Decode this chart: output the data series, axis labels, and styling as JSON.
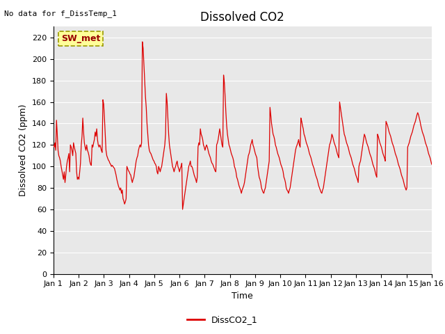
{
  "title": "Dissolved CO2",
  "xlabel": "Time",
  "ylabel": "Dissolved CO2 (ppm)",
  "top_left_text": "No data for f_DissTemp_1",
  "legend_label": "DissCO2_1",
  "box_label": "SW_met",
  "line_color": "#dd0000",
  "ylim": [
    0,
    230
  ],
  "yticks": [
    0,
    20,
    40,
    60,
    80,
    100,
    120,
    140,
    160,
    180,
    200,
    220
  ],
  "xtick_labels": [
    "Jan 1",
    "Jan 2",
    "Jan 3",
    "Jan 4",
    "Jan 5",
    "Jan 6",
    "Jan 7",
    "Jan 8",
    "Jan 9",
    "Jan 10",
    "Jan 11",
    "Jan 12",
    "Jan 13",
    "Jan 14",
    "Jan 15",
    "Jan 16"
  ],
  "data_y": [
    120,
    118,
    122,
    115,
    143,
    130,
    115,
    110,
    108,
    105,
    100,
    96,
    92,
    88,
    95,
    85,
    92,
    100,
    105,
    108,
    112,
    95,
    120,
    118,
    115,
    110,
    122,
    118,
    115,
    112,
    95,
    88,
    90,
    88,
    95,
    103,
    120,
    128,
    145,
    132,
    122,
    118,
    115,
    120,
    115,
    113,
    110,
    105,
    102,
    101,
    120,
    118,
    122,
    125,
    132,
    128,
    135,
    125,
    120,
    118,
    120,
    118,
    115,
    113,
    162,
    158,
    145,
    130,
    115,
    110,
    108,
    106,
    105,
    103,
    102,
    100,
    101,
    100,
    99,
    98,
    95,
    92,
    88,
    85,
    82,
    80,
    78,
    80,
    75,
    78,
    70,
    68,
    65,
    67,
    70,
    100,
    98,
    96,
    95,
    93,
    92,
    88,
    85,
    88,
    90,
    95,
    100,
    105,
    108,
    110,
    115,
    118,
    120,
    118,
    122,
    216,
    210,
    195,
    180,
    165,
    155,
    140,
    130,
    120,
    115,
    113,
    112,
    110,
    108,
    106,
    105,
    103,
    102,
    100,
    95,
    93,
    100,
    98,
    95,
    98,
    100,
    105,
    110,
    115,
    120,
    130,
    168,
    160,
    145,
    130,
    120,
    115,
    110,
    105,
    100,
    98,
    95,
    98,
    100,
    103,
    105,
    100,
    98,
    95,
    98,
    100,
    103,
    60,
    65,
    70,
    75,
    80,
    85,
    90,
    95,
    100,
    102,
    105,
    100,
    100,
    98,
    95,
    92,
    90,
    88,
    85,
    90,
    118,
    122,
    120,
    135,
    130,
    128,
    125,
    120,
    118,
    115,
    118,
    120,
    118,
    115,
    112,
    110,
    108,
    105,
    103,
    102,
    100,
    98,
    96,
    95,
    120,
    122,
    125,
    130,
    135,
    130,
    125,
    120,
    118,
    185,
    178,
    165,
    150,
    138,
    130,
    125,
    120,
    118,
    115,
    112,
    110,
    108,
    105,
    100,
    98,
    95,
    90,
    88,
    85,
    82,
    80,
    78,
    75,
    78,
    80,
    82,
    85,
    90,
    95,
    100,
    105,
    110,
    112,
    115,
    120,
    122,
    125,
    120,
    118,
    115,
    112,
    110,
    108,
    100,
    95,
    90,
    88,
    85,
    80,
    78,
    76,
    75,
    78,
    80,
    85,
    90,
    95,
    100,
    105,
    155,
    148,
    140,
    135,
    130,
    128,
    125,
    120,
    118,
    115,
    112,
    110,
    108,
    105,
    102,
    100,
    98,
    95,
    90,
    88,
    85,
    80,
    78,
    77,
    75,
    78,
    80,
    85,
    90,
    95,
    100,
    105,
    110,
    115,
    118,
    120,
    122,
    125,
    120,
    118,
    145,
    142,
    138,
    135,
    130,
    128,
    125,
    122,
    120,
    118,
    115,
    112,
    110,
    108,
    105,
    102,
    100,
    98,
    95,
    92,
    90,
    88,
    85,
    82,
    80,
    78,
    76,
    75,
    78,
    80,
    85,
    90,
    95,
    100,
    105,
    110,
    115,
    120,
    122,
    125,
    130,
    128,
    125,
    122,
    120,
    118,
    115,
    112,
    110,
    108,
    160,
    155,
    150,
    145,
    140,
    135,
    130,
    128,
    125,
    122,
    120,
    118,
    115,
    112,
    110,
    108,
    105,
    102,
    100,
    98,
    95,
    92,
    90,
    88,
    85,
    100,
    103,
    105,
    110,
    115,
    120,
    125,
    130,
    128,
    125,
    122,
    120,
    118,
    115,
    112,
    110,
    108,
    105,
    102,
    100,
    98,
    95,
    92,
    90,
    130,
    128,
    125,
    122,
    120,
    118,
    115,
    112,
    110,
    108,
    105,
    142,
    140,
    138,
    135,
    132,
    130,
    128,
    125,
    122,
    120,
    118,
    115,
    112,
    110,
    108,
    105,
    102,
    100,
    98,
    95,
    92,
    90,
    88,
    85,
    82,
    80,
    78,
    80,
    118,
    120,
    122,
    125,
    128,
    130,
    132,
    135,
    138,
    140,
    142,
    145,
    148,
    150,
    148,
    145,
    142,
    138,
    135,
    132,
    130,
    128,
    125,
    122,
    120,
    118,
    115,
    112,
    110,
    108,
    105,
    102
  ]
}
